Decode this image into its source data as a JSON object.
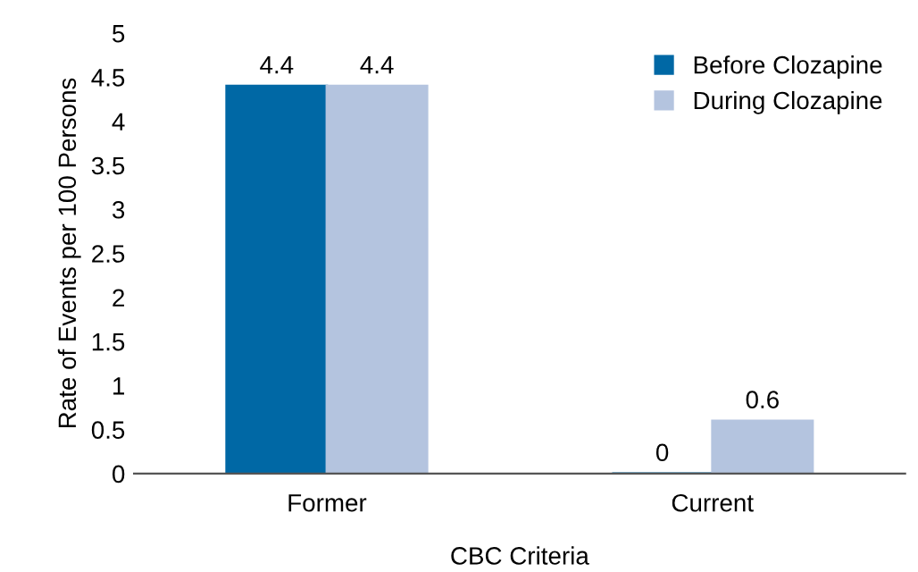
{
  "chart_data": {
    "type": "bar",
    "xlabel": "CBC Criteria",
    "ylabel": "Rate of Events per 100 Persons",
    "categories": [
      "Former",
      "Current"
    ],
    "series": [
      {
        "name": "Before Clozapine",
        "color": "#0068a5",
        "values": [
          4.4,
          0
        ]
      },
      {
        "name": "During Clozapine",
        "color": "#b4c4df",
        "values": [
          4.4,
          0.6
        ]
      }
    ],
    "ylim": [
      0,
      5
    ],
    "yticks": [
      0,
      0.5,
      1,
      1.5,
      2,
      2.5,
      3,
      3.5,
      4,
      4.5,
      5
    ],
    "data_labels": true,
    "legend": "top right",
    "grid": false
  }
}
